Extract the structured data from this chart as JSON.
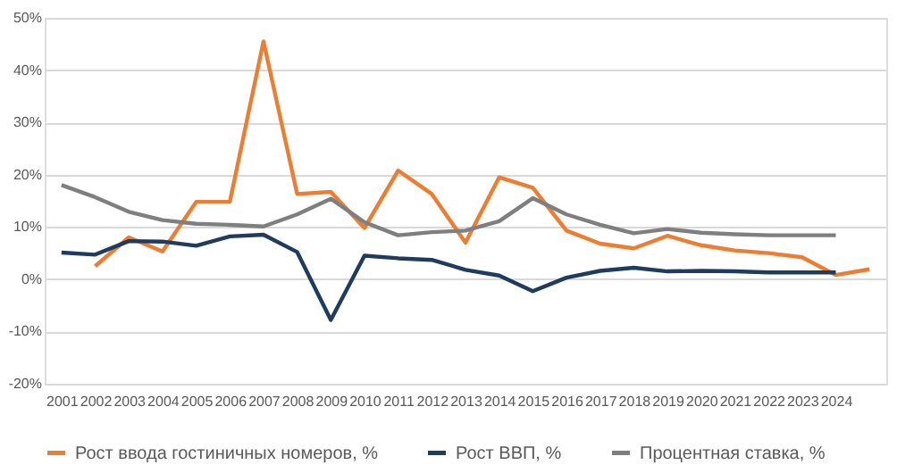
{
  "chart_data": {
    "type": "line",
    "categories": [
      "2001",
      "2002",
      "2003",
      "2004",
      "2005",
      "2006",
      "2007",
      "2008",
      "2009",
      "2010",
      "2011",
      "2012",
      "2013",
      "2014",
      "2015",
      "2016",
      "2017",
      "2018",
      "2019",
      "2020",
      "2021",
      "2022",
      "2023",
      "2024",
      null
    ],
    "series": [
      {
        "name": "Рост ввода гостиничных номеров, %",
        "color": "#ed7d31",
        "values": [
          null,
          2.5,
          8,
          5.3,
          14.8,
          14.8,
          45.5,
          16.3,
          16.7,
          9.8,
          20.8,
          16.3,
          7,
          19.5,
          17.5,
          9.3,
          6.8,
          5.9,
          8.3,
          6.5,
          5.5,
          5,
          4.2,
          0.8,
          1.9
        ]
      },
      {
        "name": "Рост ВВП, %",
        "color": "#1f3b5e",
        "values": [
          5.1,
          4.7,
          7.3,
          7.2,
          6.4,
          8.2,
          8.5,
          5.2,
          -7.8,
          4.5,
          4.0,
          3.7,
          1.8,
          0.7,
          -2.3,
          0.3,
          1.6,
          2.2,
          1.5,
          1.6,
          1.5,
          1.3,
          1.3,
          1.3,
          null
        ]
      },
      {
        "name": "Процентная ставка, %",
        "color": "#7f7f7f",
        "values": [
          18,
          15.7,
          12.9,
          11.3,
          10.6,
          10.4,
          10.1,
          12.4,
          15.4,
          10.9,
          8.4,
          9.0,
          9.3,
          11.1,
          15.5,
          12.4,
          10.4,
          8.8,
          9.6,
          8.9,
          8.6,
          8.4,
          8.4,
          8.4,
          null
        ]
      }
    ],
    "ylim": [
      -20,
      50
    ],
    "yticks": [
      {
        "value": -20,
        "label": "-20%"
      },
      {
        "value": -10,
        "label": "-10%"
      },
      {
        "value": 0,
        "label": "0%"
      },
      {
        "value": 10,
        "label": "10%"
      },
      {
        "value": 20,
        "label": "20%"
      },
      {
        "value": 30,
        "label": "30%"
      },
      {
        "value": 40,
        "label": "40%"
      },
      {
        "value": 50,
        "label": "50%"
      }
    ],
    "grid": "y",
    "legend": "bottom",
    "line_style": "solid",
    "marker": "none"
  }
}
